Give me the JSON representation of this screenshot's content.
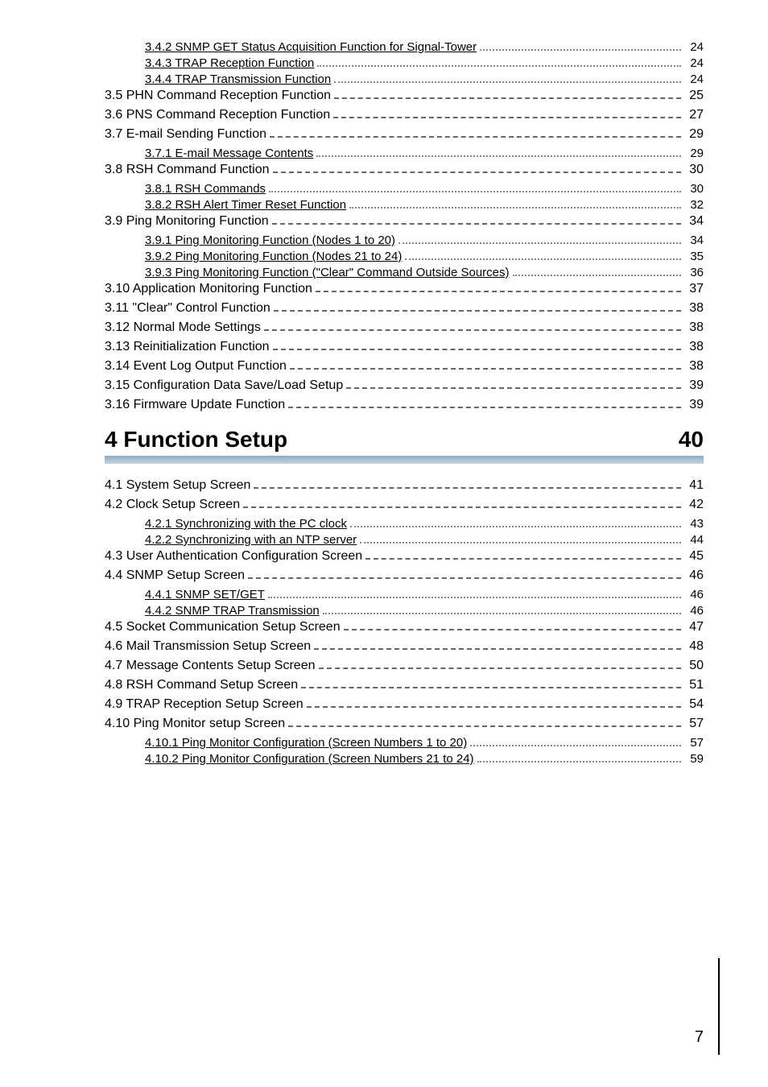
{
  "page_number": "7",
  "entries": [
    {
      "level": 3,
      "label": "3.4.2 SNMP GET Status Acquisition Function for Signal-Tower",
      "page": "24"
    },
    {
      "level": 3,
      "label": "3.4.3 TRAP Reception Function",
      "page": "24"
    },
    {
      "level": 3,
      "label": "3.4.4 TRAP Transmission Function",
      "page": "24"
    },
    {
      "level": 2,
      "label": "3.5 PHN Command Reception Function",
      "page": "25"
    },
    {
      "level": 2,
      "label": "3.6 PNS Command Reception Function",
      "page": "27"
    },
    {
      "level": 2,
      "label": "3.7 E-mail Sending Function",
      "page": "29"
    },
    {
      "level": 3,
      "label": "3.7.1 E-mail Message Contents",
      "page": "29"
    },
    {
      "level": 2,
      "label": "3.8 RSH Command Function",
      "page": "30"
    },
    {
      "level": 3,
      "label": "3.8.1 RSH Commands",
      "page": "30"
    },
    {
      "level": 3,
      "label": "3.8.2 RSH Alert Timer Reset Function",
      "page": "32"
    },
    {
      "level": 2,
      "label": "3.9 Ping Monitoring Function",
      "page": "34"
    },
    {
      "level": 3,
      "label": "3.9.1 Ping Monitoring Function (Nodes 1 to 20)",
      "page": "34"
    },
    {
      "level": 3,
      "label": "3.9.2 Ping Monitoring Function (Nodes 21 to 24)",
      "page": "35"
    },
    {
      "level": 3,
      "label": "3.9.3 Ping Monitoring Function (\"Clear\" Command Outside Sources)",
      "page": "36"
    },
    {
      "level": 2,
      "label": "3.10 Application Monitoring Function",
      "page": "37"
    },
    {
      "level": 2,
      "label": "3.11 \"Clear\" Control Function",
      "page": "38"
    },
    {
      "level": 2,
      "label": "3.12 Normal Mode Settings",
      "page": "38"
    },
    {
      "level": 2,
      "label": "3.13 Reinitialization Function",
      "page": "38"
    },
    {
      "level": 2,
      "label": "3.14 Event Log Output Function",
      "page": "38"
    },
    {
      "level": 2,
      "label": "3.15 Configuration Data Save/Load Setup",
      "page": "39"
    },
    {
      "level": 2,
      "label": "3.16 Firmware Update Function",
      "page": "39"
    }
  ],
  "chapter": {
    "title": "4 Function Setup",
    "page": "40"
  },
  "entries2": [
    {
      "level": 2,
      "label": "4.1 System Setup Screen",
      "page": "41"
    },
    {
      "level": 2,
      "label": "4.2 Clock Setup Screen",
      "page": "42"
    },
    {
      "level": 3,
      "label": "4.2.1 Synchronizing with the PC clock",
      "page": "43"
    },
    {
      "level": 3,
      "label": "4.2.2 Synchronizing with an NTP server",
      "page": "44"
    },
    {
      "level": 2,
      "label": "4.3 User Authentication Configuration Screen",
      "page": "45"
    },
    {
      "level": 2,
      "label": "4.4 SNMP Setup Screen",
      "page": "46"
    },
    {
      "level": 3,
      "label": "4.4.1 SNMP SET/GET",
      "page": "46"
    },
    {
      "level": 3,
      "label": "4.4.2 SNMP TRAP Transmission",
      "page": "46"
    },
    {
      "level": 2,
      "label": "4.5 Socket Communication Setup Screen",
      "page": "47"
    },
    {
      "level": 2,
      "label": "4.6 Mail Transmission Setup Screen",
      "page": "48"
    },
    {
      "level": 2,
      "label": "4.7 Message Contents Setup Screen",
      "page": "50"
    },
    {
      "level": 2,
      "label": "4.8 RSH Command Setup Screen",
      "page": "51"
    },
    {
      "level": 2,
      "label": "4.9 TRAP Reception Setup Screen",
      "page": "54"
    },
    {
      "level": 2,
      "label": "4.10 Ping Monitor setup Screen",
      "page": "57"
    },
    {
      "level": 3,
      "label": "4.10.1 Ping Monitor Configuration (Screen Numbers 1 to 20)",
      "page": "57"
    },
    {
      "level": 3,
      "label": "4.10.2 Ping Monitor Configuration (Screen Numbers 21 to 24)",
      "page": "59"
    }
  ]
}
